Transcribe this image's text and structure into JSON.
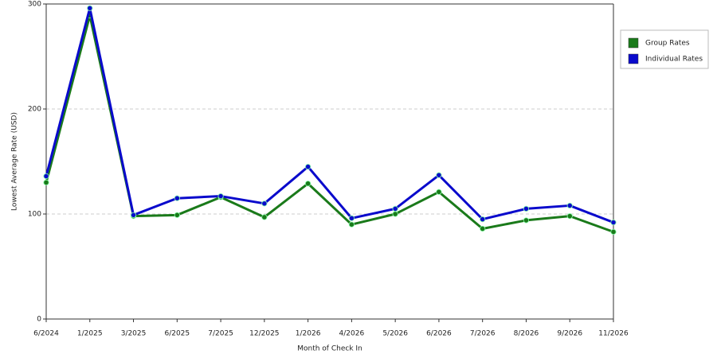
{
  "chart_data": {
    "type": "line",
    "x_label": "Month of Check In",
    "y_label": "Lowest Average Rate (USD)",
    "categories": [
      "6/2024",
      "1/2025",
      "3/2025",
      "6/2025",
      "7/2025",
      "12/2025",
      "1/2026",
      "4/2026",
      "5/2026",
      "6/2026",
      "7/2026",
      "8/2026",
      "9/2026",
      "11/2026"
    ],
    "series": [
      {
        "name": "Group Rates",
        "color": "#1a7a1a",
        "values": [
          130,
          289,
          98,
          99,
          116,
          97,
          129,
          90,
          100,
          121,
          86,
          94,
          98,
          83
        ]
      },
      {
        "name": "Individual Rates",
        "color": "#0a0acc",
        "values": [
          136,
          296,
          99,
          115,
          117,
          110,
          145,
          96,
          105,
          137,
          95,
          105,
          108,
          92
        ]
      }
    ],
    "ylim": [
      0,
      300
    ],
    "yticks": [
      0,
      100,
      200,
      300
    ],
    "grid": true,
    "legend": "right"
  }
}
